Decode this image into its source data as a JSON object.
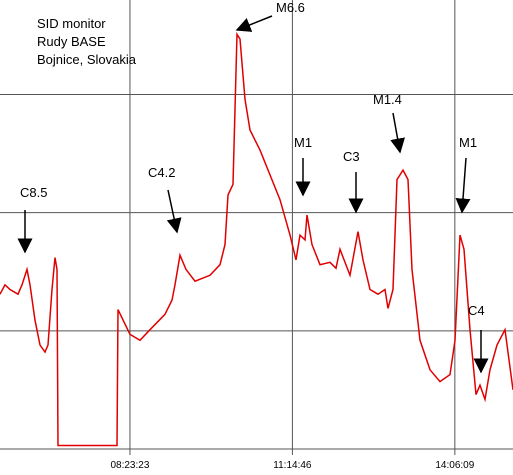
{
  "chart_data": {
    "type": "line",
    "title_lines": [
      "SID monitor",
      "Rudy BASE",
      "Bojnice, Slovakia"
    ],
    "annotations": [
      {
        "text": "C8.5"
      },
      {
        "text": "C4.2"
      },
      {
        "text": "M6.6"
      },
      {
        "text": "M1"
      },
      {
        "text": "C3"
      },
      {
        "text": "M1.4"
      },
      {
        "text": "M1"
      },
      {
        "text": "C4"
      }
    ],
    "xlim": [
      21977,
      54450
    ],
    "xticks": [
      {
        "value": 30203,
        "label": "08:23:23"
      },
      {
        "value": 40486,
        "label": "11:14:46"
      },
      {
        "value": 50769,
        "label": "14:06:09"
      }
    ],
    "ylim": [
      0,
      3.8
    ],
    "yticks": [
      0,
      1,
      2,
      3
    ],
    "grid": true,
    "series": [
      {
        "color": "#e00000",
        "x": [
          21977,
          22294,
          22610,
          23116,
          23370,
          23686,
          23876,
          24193,
          24509,
          24826,
          25015,
          25269,
          25459,
          25585,
          25648,
          29383,
          29446,
          30206,
          30839,
          31472,
          32422,
          32865,
          33055,
          33371,
          33751,
          34321,
          35270,
          35903,
          36220,
          36409,
          36726,
          36979,
          37169,
          37486,
          37802,
          38435,
          39068,
          39701,
          40334,
          40714,
          40967,
          41284,
          41410,
          41727,
          42233,
          42866,
          43246,
          43499,
          44132,
          44638,
          44955,
          45398,
          45904,
          46348,
          46537,
          46854,
          47107,
          47487,
          47803,
          48056,
          48563,
          49196,
          49829,
          50462,
          50779,
          51095,
          51348,
          51728,
          52107,
          52361,
          52678,
          52994,
          53437,
          53944,
          54450
        ],
        "values": [
          1.31,
          1.39,
          1.35,
          1.31,
          1.39,
          1.52,
          1.39,
          1.09,
          0.88,
          0.82,
          0.88,
          1.35,
          1.62,
          1.52,
          0.03,
          0.03,
          1.18,
          0.97,
          0.92,
          1.01,
          1.14,
          1.26,
          1.39,
          1.64,
          1.52,
          1.42,
          1.47,
          1.56,
          1.73,
          2.15,
          2.24,
          3.51,
          3.47,
          2.96,
          2.7,
          2.53,
          2.32,
          2.11,
          1.81,
          1.6,
          1.81,
          1.77,
          1.98,
          1.73,
          1.56,
          1.58,
          1.53,
          1.69,
          1.47,
          1.84,
          1.6,
          1.35,
          1.31,
          1.35,
          1.19,
          1.35,
          2.28,
          2.36,
          2.28,
          1.52,
          0.92,
          0.67,
          0.57,
          0.63,
          0.92,
          1.81,
          1.69,
          1.01,
          0.46,
          0.54,
          0.42,
          0.67,
          0.88,
          1.01,
          0.5
        ]
      }
    ]
  }
}
